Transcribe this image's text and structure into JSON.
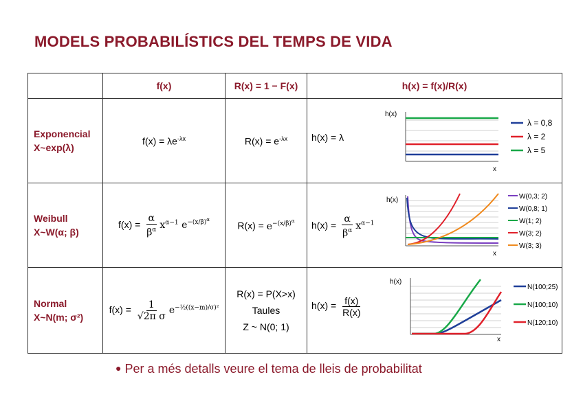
{
  "title": "MODELS PROBABILÍSTICS DEL TEMPS DE VIDA",
  "headers": {
    "c1": "",
    "c2": "f(x)",
    "c3": "R(x) = 1 − F(x)",
    "c4": "h(x) = f(x)/R(x)"
  },
  "rows": {
    "exp": {
      "name1": "Exponencial",
      "name2": "X~exp(λ)",
      "f": "f(x) = λe",
      "f_exp": "-λx",
      "r": "R(x) = e",
      "r_exp": "-λx",
      "h": "h(x) = λ"
    },
    "weibull": {
      "name1": "Weibull",
      "name2": "X~W(α; β)",
      "f_pre": "f(x) =",
      "r_pre": "R(x) =",
      "h_pre": "h(x) ="
    },
    "normal": {
      "name1": "Normal",
      "name2": "X~N(m; σ²)",
      "f_pre": "f(x) =",
      "r1": "R(x) = P(X>x)",
      "r2": "Taules",
      "r3": "Z ~ N(0; 1)",
      "h_pre": "h(x) =",
      "h_num": "f(x)",
      "h_den": "R(x)"
    }
  },
  "charts": {
    "axis_y": "h(x)",
    "axis_x": "x",
    "exp_legend": [
      "λ = 0,8",
      "λ = 2",
      "λ = 5"
    ],
    "weibull_legend": [
      "W(0,3; 2)",
      "W(0,8; 1)",
      "W(1; 2)",
      "W(3; 2)",
      "W(3; 3)"
    ],
    "normal_legend": [
      "N(100;25)",
      "N(100;10)",
      "N(120;10)"
    ],
    "colors": {
      "blue": "#1f3f99",
      "red": "#e0202a",
      "green": "#18a848",
      "purple": "#7a3fc0",
      "orange": "#f08a1e"
    }
  },
  "note": "Per a més detalls veure el tema de lleis de probabilitat"
}
